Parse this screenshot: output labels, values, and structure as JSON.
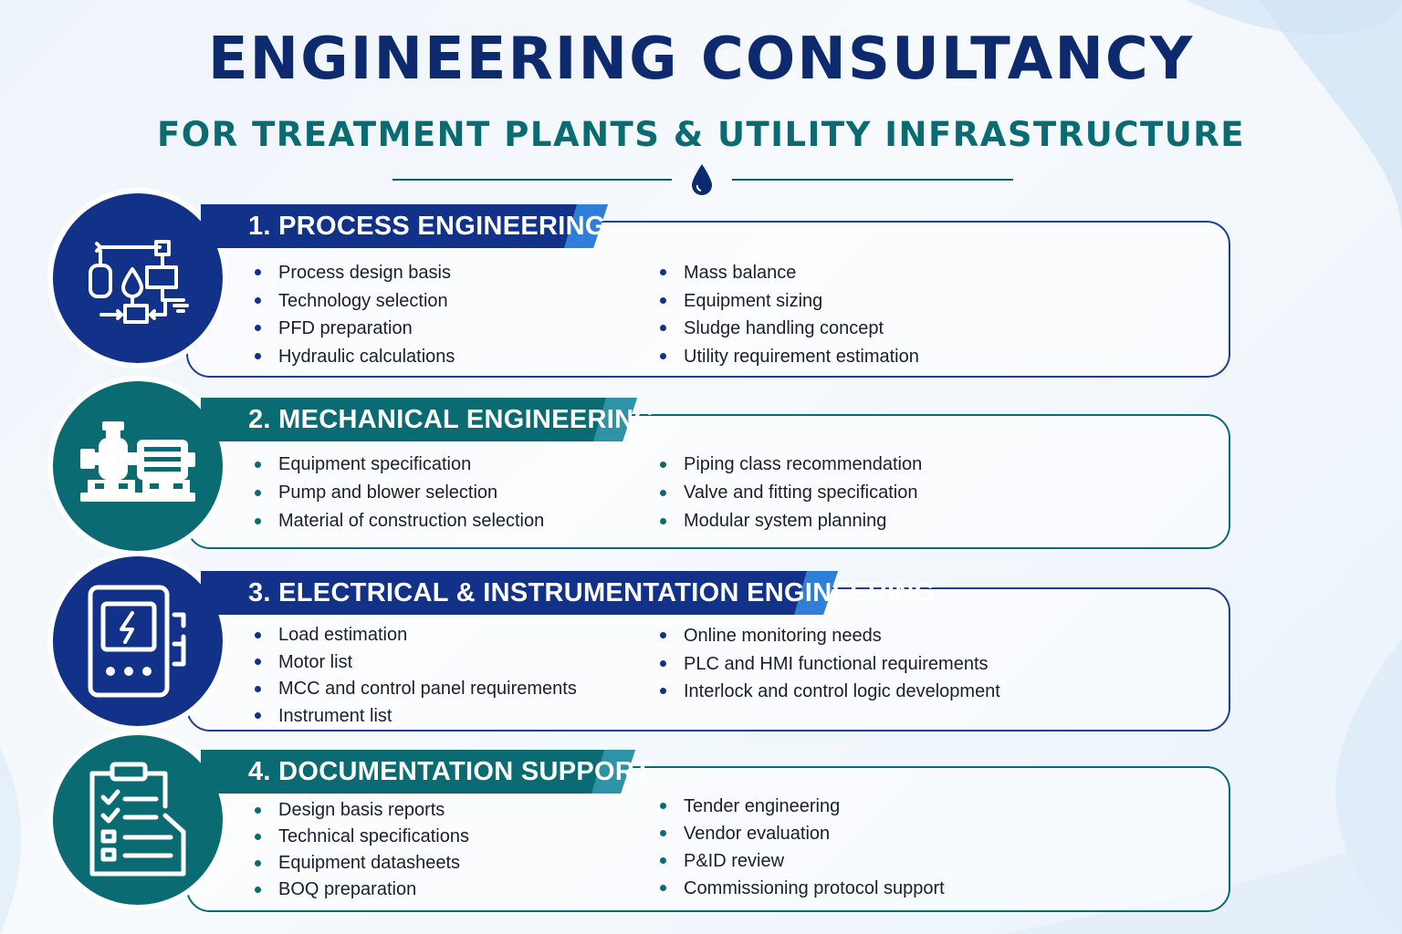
{
  "title": "ENGINEERING CONSULTANCY",
  "subtitle": "FOR TREATMENT PLANTS & UTILITY INFRASTRUCTURE",
  "colors": {
    "navy": "#0d2a6e",
    "teal": "#0b6b73",
    "blue_accent": "#2f7fd8"
  },
  "sections": [
    {
      "heading": "1. PROCESS ENGINEERING",
      "icon": "process-flow-icon",
      "left_items": [
        "Process design basis",
        "Technology selection",
        "PFD preparation",
        "Hydraulic calculations"
      ],
      "right_items": [
        "Mass balance",
        "Equipment sizing",
        "Sludge handling concept",
        "Utility requirement estimation"
      ]
    },
    {
      "heading": "2. MECHANICAL ENGINEERING",
      "icon": "pump-motor-icon",
      "left_items": [
        "Equipment specification",
        "Pump and blower selection",
        "Material of construction selection"
      ],
      "right_items": [
        "Piping class recommendation",
        "Valve and fitting specification",
        "Modular system planning"
      ]
    },
    {
      "heading": "3. ELECTRICAL & INSTRUMENTATION ENGINEERING",
      "icon": "control-panel-icon",
      "left_items": [
        "Load estimation",
        "Motor list",
        "MCC and control panel requirements",
        "Instrument list"
      ],
      "right_items": [
        "Online monitoring needs",
        "PLC and HMI functional requirements",
        "Interlock and control logic development"
      ]
    },
    {
      "heading": "4. DOCUMENTATION SUPPORT",
      "icon": "clipboard-checklist-icon",
      "left_items": [
        "Design basis reports",
        "Technical specifications",
        "Equipment datasheets",
        "BOQ preparation"
      ],
      "right_items": [
        "Tender engineering",
        "Vendor evaluation",
        "P&ID review",
        "Commissioning protocol support"
      ]
    }
  ]
}
